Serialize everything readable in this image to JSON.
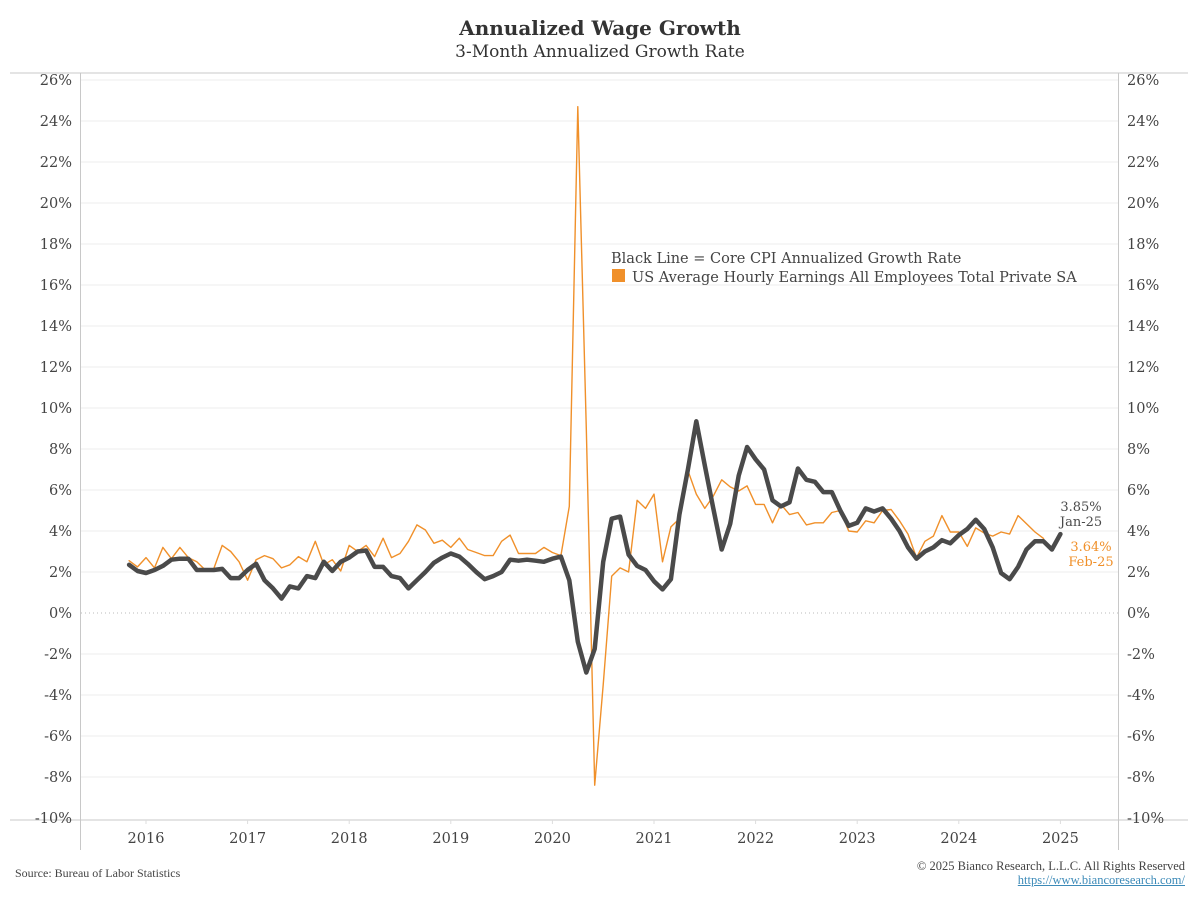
{
  "header": {
    "title": "Annualized Wage Growth",
    "subtitle": "3-Month Annualized Growth Rate"
  },
  "footer": {
    "source": "Source: Bureau of Labor Statistics",
    "copyright": "© 2025 Bianco Research, L.L.C. All Rights Reserved",
    "link": "https://www.biancoresearch.com/"
  },
  "chart_data": {
    "type": "line",
    "title": "Annualized Wage Growth",
    "subtitle": "3-Month Annualized Growth Rate",
    "xlabel": "",
    "ylabel": "",
    "ylim": [
      -10,
      26
    ],
    "yticks": [
      26,
      24,
      22,
      20,
      18,
      16,
      14,
      12,
      10,
      8,
      6,
      4,
      2,
      0,
      -2,
      -4,
      -6,
      -8,
      -10
    ],
    "ytick_format": "%",
    "xticks": [
      "2016",
      "2017",
      "2018",
      "2019",
      "2020",
      "2021",
      "2022",
      "2023",
      "2024",
      "2025"
    ],
    "grid": true,
    "dual_axis": true,
    "legend": {
      "placement": "center",
      "entries": [
        {
          "label": "Black Line = Core CPI Annualized Growth Rate",
          "color": "#4a4a4a",
          "swatch": false
        },
        {
          "label": "US Average Hourly Earnings All Employees Total Private SA",
          "color": "#f0902a",
          "swatch": true
        }
      ]
    },
    "start": "2015-11",
    "series": [
      {
        "name": "US Average Hourly Earnings All Employees Total Private SA",
        "color": "#f0902a",
        "values": [
          2.55,
          2.25,
          2.7,
          2.2,
          3.2,
          2.65,
          3.2,
          2.7,
          2.5,
          2.1,
          2.15,
          3.3,
          3.0,
          2.5,
          1.6,
          2.6,
          2.8,
          2.65,
          2.2,
          2.35,
          2.75,
          2.5,
          3.5,
          2.35,
          2.6,
          2.05,
          3.3,
          3.0,
          3.3,
          2.75,
          3.65,
          2.7,
          2.9,
          3.5,
          4.3,
          4.05,
          3.4,
          3.55,
          3.2,
          3.65,
          3.1,
          2.95,
          2.8,
          2.8,
          3.5,
          3.8,
          2.9,
          2.9,
          2.9,
          3.2,
          2.95,
          2.8,
          5.2,
          24.7,
          9.0,
          -8.4,
          -3.5,
          1.8,
          2.2,
          2.0,
          5.5,
          5.1,
          5.8,
          2.5,
          4.2,
          4.6,
          6.95,
          5.8,
          5.1,
          5.7,
          6.5,
          6.15,
          5.95,
          6.2,
          5.3,
          5.3,
          4.4,
          5.3,
          4.8,
          4.9,
          4.3,
          4.4,
          4.4,
          4.9,
          5.0,
          4.0,
          3.95,
          4.5,
          4.4,
          5.0,
          5.05,
          4.5,
          3.85,
          2.7,
          3.5,
          3.75,
          4.75,
          3.95,
          3.95,
          3.25,
          4.15,
          3.9,
          3.75,
          3.95,
          3.85,
          4.75,
          4.35,
          3.95,
          3.64
        ]
      },
      {
        "name": "Core CPI Annualized Growth Rate",
        "color": "#4a4a4a",
        "values": [
          2.35,
          2.05,
          1.95,
          2.1,
          2.3,
          2.6,
          2.65,
          2.65,
          2.1,
          2.1,
          2.1,
          2.15,
          1.7,
          1.7,
          2.1,
          2.4,
          1.6,
          1.2,
          0.7,
          1.3,
          1.2,
          1.8,
          1.7,
          2.5,
          2.05,
          2.5,
          2.7,
          3.0,
          3.05,
          2.25,
          2.25,
          1.8,
          1.7,
          1.2,
          1.6,
          2.0,
          2.45,
          2.7,
          2.9,
          2.75,
          2.4,
          2.0,
          1.65,
          1.8,
          2.0,
          2.6,
          2.55,
          2.6,
          2.55,
          2.5,
          2.65,
          2.75,
          1.6,
          -1.4,
          -2.9,
          -1.75,
          2.5,
          4.6,
          4.7,
          2.85,
          2.3,
          2.1,
          1.55,
          1.15,
          1.65,
          4.8,
          7.0,
          9.35,
          7.2,
          5.1,
          3.1,
          4.35,
          6.7,
          8.1,
          7.5,
          7.0,
          5.5,
          5.2,
          5.4,
          7.05,
          6.5,
          6.4,
          5.9,
          5.9,
          5.0,
          4.25,
          4.4,
          5.1,
          4.95,
          5.1,
          4.6,
          4.0,
          3.2,
          2.65,
          3.0,
          3.2,
          3.55,
          3.4,
          3.8,
          4.1,
          4.55,
          4.1,
          3.2,
          1.95,
          1.65,
          2.25,
          3.1,
          3.5,
          3.5,
          3.1,
          3.85
        ]
      }
    ],
    "annotations": [
      {
        "series": "Core CPI Annualized Growth Rate",
        "value_label": "3.85%",
        "date_label": "Jan-25",
        "color": "#4a4a4a"
      },
      {
        "series": "US Average Hourly Earnings All Employees Total Private SA",
        "value_label": "3.64%",
        "date_label": "Feb-25",
        "color": "#f0902a"
      }
    ]
  }
}
